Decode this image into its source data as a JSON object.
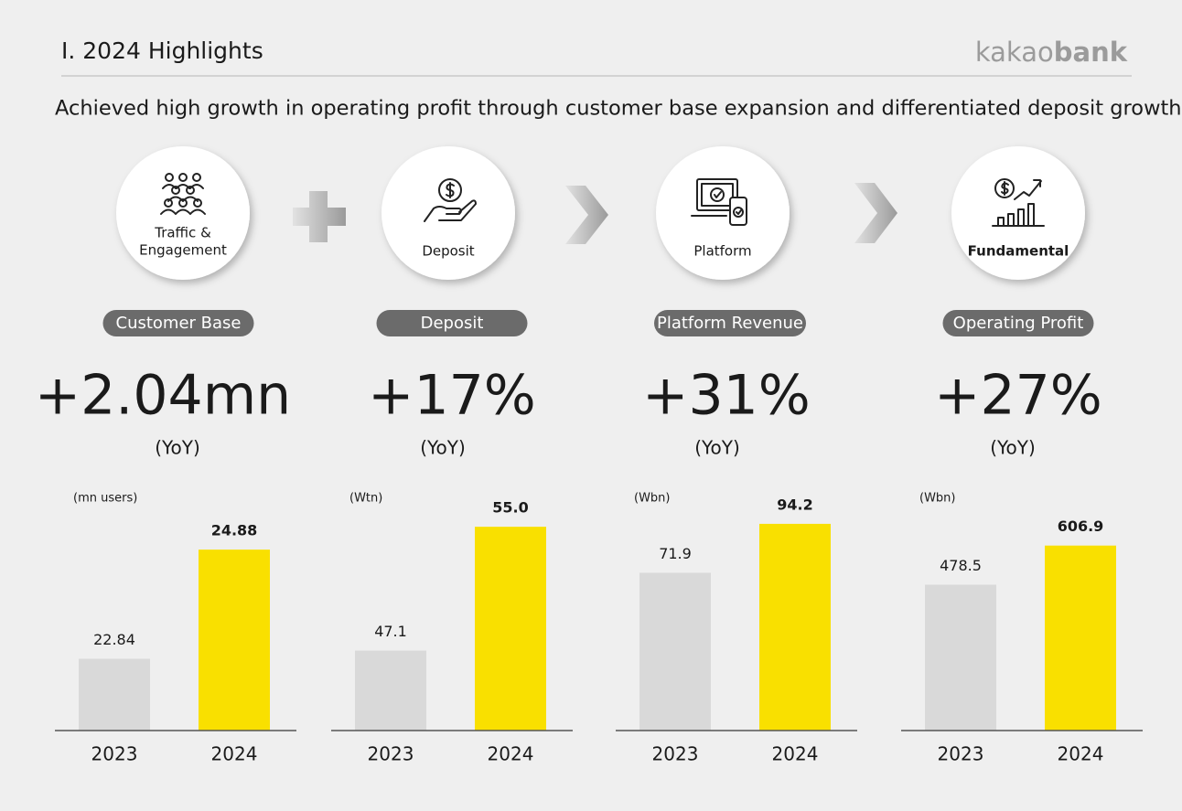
{
  "header": {
    "title": "I. 2024 Highlights",
    "logo_light": "kakao",
    "logo_bold": "bank"
  },
  "subtitle": "Achieved high growth in operating profit through customer base expansion and differentiated deposit growth",
  "pillars": [
    {
      "icon_label": [
        "Traffic &",
        "Engagement"
      ],
      "metric": "Customer Base",
      "change": "+2.04mn",
      "period": "(YoY)"
    },
    {
      "icon_label": [
        "Deposit"
      ],
      "metric": "Deposit",
      "change": "+17%",
      "period": "(YoY)"
    },
    {
      "icon_label": [
        "Platform"
      ],
      "metric": "Platform Revenue",
      "change": "+31%",
      "period": "(YoY)"
    },
    {
      "icon_label": [
        "Fundamental"
      ],
      "metric": "Operating Profit",
      "change": "+27%",
      "period": "(YoY)"
    }
  ],
  "chart_data": [
    {
      "type": "bar",
      "unit_label": "(mn users)",
      "categories": [
        "2023",
        "2024"
      ],
      "values": [
        22.84,
        24.88
      ],
      "colors": [
        "#d9d9d9",
        "#f9e000"
      ],
      "ylim": [
        21.5,
        25.6
      ]
    },
    {
      "type": "bar",
      "unit_label": "(Wtn)",
      "categories": [
        "2023",
        "2024"
      ],
      "values": [
        47.1,
        55.0
      ],
      "value_labels": [
        "47.1",
        "55.0"
      ],
      "colors": [
        "#d9d9d9",
        "#f9e000"
      ],
      "ylim": [
        42,
        56
      ]
    },
    {
      "type": "bar",
      "unit_label": "(Wbn)",
      "categories": [
        "2023",
        "2024"
      ],
      "values": [
        71.9,
        94.2
      ],
      "colors": [
        "#d9d9d9",
        "#f9e000"
      ],
      "ylim": [
        0,
        100
      ]
    },
    {
      "type": "bar",
      "unit_label": "(Wbn)",
      "categories": [
        "2023",
        "2024"
      ],
      "values": [
        478.5,
        606.9
      ],
      "colors": [
        "#d9d9d9",
        "#f9e000"
      ],
      "ylim": [
        0,
        720
      ]
    }
  ]
}
